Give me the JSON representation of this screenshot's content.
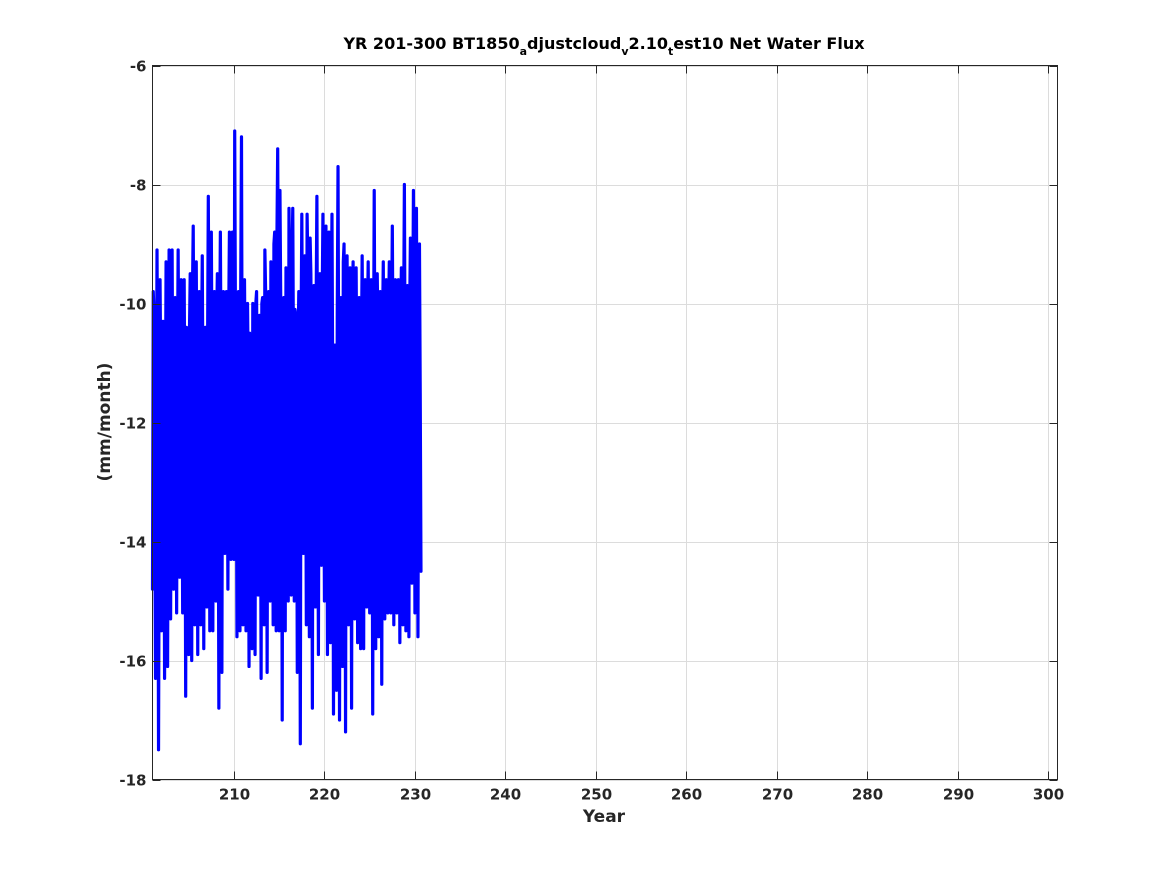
{
  "chart_data": {
    "type": "line",
    "title": {
      "prefix": "YR 201-300 BT1850",
      "sub1": "a",
      "mid1": "djustcloud",
      "sub2": "v",
      "mid2": "2.10",
      "sub3": "t",
      "suffix": "est10 Net Water Flux"
    },
    "xlabel": "Year",
    "ylabel": "(mm/month)",
    "xlim": [
      201,
      301
    ],
    "ylim": [
      -18,
      -6
    ],
    "xticks": [
      210,
      220,
      230,
      240,
      250,
      260,
      270,
      280,
      290,
      300
    ],
    "yticks": [
      -18,
      -16,
      -14,
      -12,
      -10,
      -8,
      -6
    ],
    "grid": true,
    "series": [
      {
        "color": "#0000ff",
        "x_start": 201.0,
        "x_step": 0.08333,
        "values": [
          -14.8,
          -9.8,
          -10.2,
          -13.4,
          -16.3,
          -12.8,
          -9.1,
          -11.9,
          -17.5,
          -13.1,
          -9.6,
          -11.3,
          -15.5,
          -12.4,
          -10.3,
          -11.8,
          -16.3,
          -12.2,
          -9.3,
          -11.0,
          -16.1,
          -12.1,
          -9.1,
          -11.6,
          -15.3,
          -11.7,
          -9.1,
          -12.1,
          -14.8,
          -12.3,
          -9.9,
          -11.2,
          -15.2,
          -11.2,
          -9.1,
          -11.5,
          -14.6,
          -10.5,
          -9.6,
          -12.0,
          -15.2,
          -11.0,
          -9.6,
          -12.1,
          -16.6,
          -10.4,
          -10.6,
          -12.2,
          -15.9,
          -10.5,
          -9.5,
          -12.1,
          -16.0,
          -9.8,
          -8.7,
          -11.4,
          -15.4,
          -10.9,
          -9.3,
          -11.8,
          -15.9,
          -10.8,
          -9.8,
          -11.5,
          -15.4,
          -10.8,
          -9.2,
          -11.9,
          -15.8,
          -10.5,
          -10.4,
          -12.0,
          -15.1,
          -10.8,
          -8.2,
          -11.3,
          -15.5,
          -10.1,
          -8.8,
          -11.3,
          -15.5,
          -10.1,
          -9.8,
          -11.7,
          -15.0,
          -10.4,
          -9.5,
          -12.0,
          -16.8,
          -10.7,
          -8.8,
          -11.5,
          -16.2,
          -10.5,
          -9.8,
          -11.3,
          -14.2,
          -10.3,
          -9.8,
          -11.5,
          -14.8,
          -10.3,
          -8.8,
          -11.9,
          -14.3,
          -9.4,
          -8.8,
          -11.4,
          -14.3,
          -7.1,
          -10.4,
          -11.5,
          -15.6,
          -10.2,
          -9.8,
          -11.9,
          -15.5,
          -9.7,
          -7.2,
          -12.1,
          -15.4,
          -9.8,
          -9.6,
          -11.5,
          -15.5,
          -10.7,
          -10.0,
          -11.3,
          -16.1,
          -10.5,
          -10.7,
          -11.8,
          -15.8,
          -10.0,
          -10.8,
          -11.8,
          -15.9,
          -10.0,
          -9.8,
          -12.0,
          -14.9,
          -10.5,
          -10.2,
          -11.6,
          -16.3,
          -10.0,
          -9.9,
          -12.3,
          -15.4,
          -9.1,
          -9.8,
          -11.2,
          -16.2,
          -10.6,
          -9.8,
          -11.3,
          -15.0,
          -9.3,
          -9.8,
          -11.7,
          -15.4,
          -9.0,
          -8.8,
          -10.8,
          -15.5,
          -8.9,
          -7.4,
          -10.4,
          -15.5,
          -8.1,
          -9.9,
          -11.2,
          -17.0,
          -10.0,
          -9.9,
          -12.3,
          -15.5,
          -9.4,
          -9.9,
          -11.6,
          -15.0,
          -8.4,
          -9.7,
          -11.5,
          -14.9,
          -9.2,
          -8.4,
          -11.3,
          -15.0,
          -10.1,
          -10.2,
          -11.5,
          -16.2,
          -10.8,
          -9.8,
          -12.3,
          -17.4,
          -10.5,
          -8.5,
          -11.3,
          -14.2,
          -10.4,
          -9.2,
          -11.6,
          -15.4,
          -8.5,
          -9.4,
          -11.5,
          -15.6,
          -8.9,
          -9.5,
          -12.1,
          -16.8,
          -10.1,
          -9.7,
          -11.8,
          -15.1,
          -10.0,
          -8.2,
          -11.9,
          -15.9,
          -10.8,
          -9.5,
          -11.8,
          -14.4,
          -10.0,
          -8.5,
          -11.8,
          -15.0,
          -10.1,
          -8.7,
          -11.6,
          -15.9,
          -10.3,
          -8.8,
          -11.8,
          -15.7,
          -10.4,
          -8.5,
          -11.5,
          -16.9,
          -10.9,
          -10.7,
          -11.7,
          -16.5,
          -10.2,
          -7.7,
          -11.6,
          -17.0,
          -10.5,
          -9.9,
          -11.6,
          -16.1,
          -9.3,
          -9.0,
          -11.8,
          -17.2,
          -10.1,
          -9.2,
          -11.3,
          -15.4,
          -10.3,
          -9.4,
          -11.6,
          -16.8,
          -10.0,
          -9.3,
          -12.0,
          -15.3,
          -10.3,
          -9.4,
          -11.5,
          -15.7,
          -10.2,
          -9.9,
          -11.2,
          -15.8,
          -10.9,
          -9.2,
          -11.2,
          -15.8,
          -10.0,
          -9.6,
          -11.3,
          -15.1,
          -10.3,
          -9.3,
          -11.2,
          -15.2,
          -9.9,
          -9.6,
          -11.5,
          -16.9,
          -11.3,
          -8.1,
          -11.4,
          -15.8,
          -11.5,
          -9.5,
          -10.6,
          -15.6,
          -10.7,
          -9.8,
          -11.5,
          -16.4,
          -10.5,
          -9.3,
          -11.7,
          -15.3,
          -10.4,
          -9.6,
          -11.5,
          -15.2,
          -10.3,
          -9.3,
          -10.7,
          -15.2,
          -10.5,
          -8.7,
          -11.0,
          -15.4,
          -10.3,
          -9.6,
          -11.6,
          -15.2,
          -9.9,
          -9.6,
          -11.5,
          -15.7,
          -10.4,
          -9.4,
          -11.0,
          -15.4,
          -10.3,
          -8.0,
          -11.3,
          -15.5,
          -9.9,
          -9.7,
          -11.5,
          -15.6,
          -10.2,
          -8.9,
          -11.3,
          -14.7,
          -10.5,
          -8.1,
          -10.8,
          -15.2,
          -10.4,
          -8.4,
          -11.6,
          -15.6,
          -10.8,
          -9.0,
          -11.5,
          -14.5
        ]
      }
    ]
  }
}
